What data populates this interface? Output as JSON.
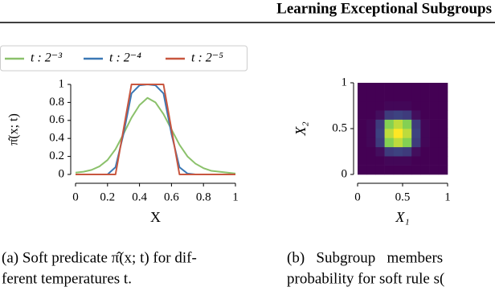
{
  "header": {
    "title": "Learning Exceptional Subgroups"
  },
  "chart_data": [
    {
      "type": "line",
      "x": [
        0,
        0.05,
        0.1,
        0.15,
        0.2,
        0.25,
        0.3,
        0.35,
        0.4,
        0.45,
        0.5,
        0.55,
        0.6,
        0.65,
        0.7,
        0.75,
        0.8,
        0.85,
        0.9,
        0.95,
        1
      ],
      "series": [
        {
          "name": "t : 2⁻³",
          "color": "#8bc16b",
          "values": [
            0.02,
            0.03,
            0.05,
            0.09,
            0.16,
            0.28,
            0.45,
            0.63,
            0.77,
            0.85,
            0.8,
            0.67,
            0.5,
            0.33,
            0.2,
            0.12,
            0.07,
            0.04,
            0.03,
            0.02,
            0.01
          ]
        },
        {
          "name": "t : 2⁻⁴",
          "color": "#3b78b5",
          "values": [
            0,
            0,
            0,
            0,
            0,
            0.08,
            0.45,
            0.9,
            0.99,
            1,
            0.99,
            0.9,
            0.45,
            0.08,
            0.01,
            0,
            0,
            0,
            0,
            0,
            0
          ]
        },
        {
          "name": "t : 2⁻⁵",
          "color": "#c8563f",
          "values": [
            0,
            0,
            0,
            0,
            0,
            0,
            0.5,
            1,
            1,
            1,
            1,
            1,
            0.5,
            0,
            0,
            0,
            0,
            0,
            0,
            0,
            0
          ]
        }
      ],
      "xlim": [
        0,
        1
      ],
      "ylim": [
        0,
        1
      ],
      "xticks": [
        0,
        0.2,
        0.4,
        0.6,
        0.8,
        1
      ],
      "yticks": [
        0,
        0.2,
        0.4,
        0.6,
        0.8,
        1
      ],
      "x_label": "X",
      "y_label": "π̂(x; t)"
    },
    {
      "type": "heatmap",
      "x": [
        0.05,
        0.15,
        0.25,
        0.35,
        0.45,
        0.55,
        0.65,
        0.75,
        0.85,
        0.95
      ],
      "y": [
        0.05,
        0.15,
        0.25,
        0.35,
        0.45,
        0.55,
        0.65,
        0.75,
        0.85,
        0.95
      ],
      "values": [
        [
          0,
          0,
          0,
          0,
          0,
          0,
          0,
          0,
          0,
          0
        ],
        [
          0,
          0,
          0,
          0.02,
          0.02,
          0.02,
          0,
          0,
          0,
          0
        ],
        [
          0,
          0,
          0.04,
          0.18,
          0.2,
          0.18,
          0.04,
          0,
          0,
          0
        ],
        [
          0,
          0.02,
          0.18,
          0.81,
          0.9,
          0.81,
          0.18,
          0.02,
          0,
          0
        ],
        [
          0,
          0.02,
          0.2,
          0.9,
          1,
          0.9,
          0.2,
          0.02,
          0,
          0
        ],
        [
          0,
          0.02,
          0.18,
          0.81,
          0.9,
          0.81,
          0.18,
          0.02,
          0,
          0
        ],
        [
          0,
          0,
          0.04,
          0.18,
          0.2,
          0.18,
          0.04,
          0,
          0,
          0
        ],
        [
          0,
          0,
          0,
          0.02,
          0.02,
          0.02,
          0,
          0,
          0,
          0
        ],
        [
          0,
          0,
          0,
          0,
          0,
          0,
          0,
          0,
          0,
          0
        ],
        [
          0,
          0,
          0,
          0,
          0,
          0,
          0,
          0,
          0,
          0
        ]
      ],
      "zlim": [
        0,
        1
      ],
      "colorscale": [
        "#440154",
        "#3b528b",
        "#21918c",
        "#5ec962",
        "#fde725"
      ],
      "xlim": [
        0,
        1
      ],
      "ylim": [
        0,
        1
      ],
      "xticks": [
        0,
        0.5,
        1
      ],
      "yticks": [
        0,
        0.5,
        1
      ],
      "x_label": "X₁",
      "y_label": "X₂"
    }
  ],
  "captions": [
    {
      "lines": [
        "(a) Soft predicate π̂(x; t) for dif-",
        "ferent temperatures t."
      ]
    },
    {
      "lines": [
        "(b)   Subgroup   members",
        "probability for soft rule s("
      ]
    }
  ]
}
